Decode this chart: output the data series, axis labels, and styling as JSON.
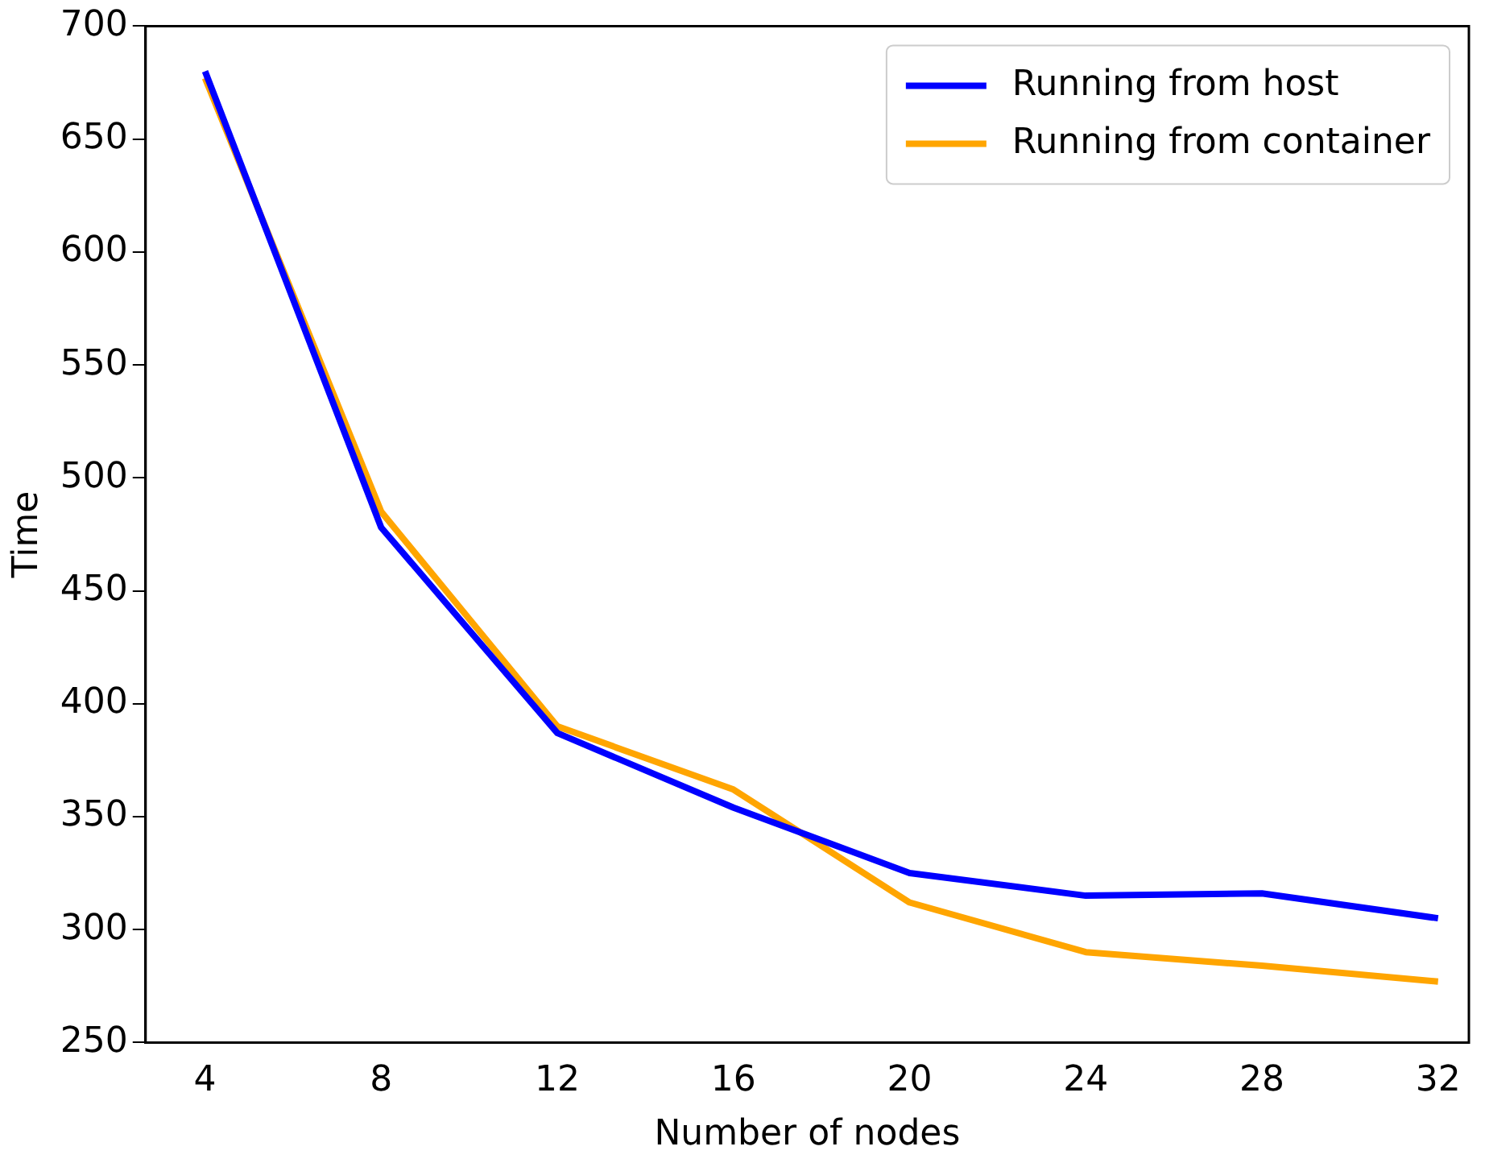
{
  "chart_data": {
    "type": "line",
    "xlabel": "Number of nodes",
    "ylabel": "Time",
    "x": [
      4,
      8,
      12,
      16,
      20,
      24,
      28,
      32
    ],
    "series": [
      {
        "name": "Running from host",
        "color": "#0000ff",
        "values": [
          680,
          478,
          387,
          354,
          325,
          315,
          316,
          305
        ]
      },
      {
        "name": "Running from container",
        "color": "#ffa500",
        "values": [
          677,
          485,
          390,
          362,
          312,
          290,
          284,
          277
        ]
      }
    ],
    "xlim": [
      2.65,
      32.7
    ],
    "xticks": [
      4,
      8,
      12,
      16,
      20,
      24,
      28,
      32
    ],
    "ylim": [
      250,
      700
    ],
    "yticks": [
      250,
      300,
      350,
      400,
      450,
      500,
      550,
      600,
      650,
      700
    ],
    "grid": false,
    "legend": "top right",
    "marker": "none",
    "line_style": "solid"
  }
}
